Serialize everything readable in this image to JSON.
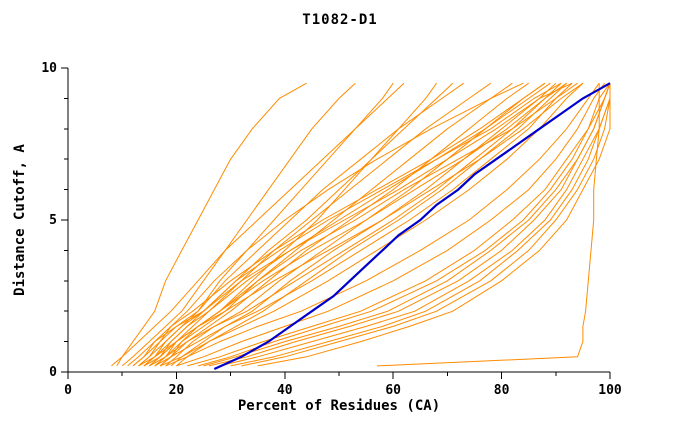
{
  "chart_data": {
    "type": "line",
    "title": "T1082-D1",
    "xlabel": "Percent of Residues (CA)",
    "ylabel": "Distance Cutoff, A",
    "xlim": [
      0,
      100
    ],
    "ylim": [
      0,
      10
    ],
    "x_major_ticks": [
      0,
      20,
      40,
      60,
      80,
      100
    ],
    "x_minor_step": 10,
    "y_major_ticks": [
      0,
      5,
      10
    ],
    "y_minor_step": 1,
    "grid": false,
    "legend": "none",
    "colors": {
      "models": "#FF8C00",
      "highlight": "#0000CD",
      "axis": "#000000"
    },
    "y_levels": [
      0.2,
      0.5,
      1,
      1.5,
      2,
      3,
      4,
      5,
      6,
      7,
      8,
      9,
      9.5
    ],
    "models": [
      [
        9,
        10,
        12,
        14,
        16,
        18,
        21,
        24,
        27,
        30,
        34,
        39,
        44
      ],
      [
        10,
        12,
        15,
        18,
        21,
        25,
        29,
        33,
        37,
        41,
        45,
        50,
        53
      ],
      [
        12,
        14,
        17,
        20,
        24,
        28,
        33,
        38,
        43,
        48,
        53,
        58,
        60
      ],
      [
        8,
        10,
        13,
        16,
        19,
        24,
        29,
        35,
        41,
        47,
        53,
        59,
        62
      ],
      [
        13,
        16,
        20,
        24,
        28,
        34,
        40,
        46,
        51,
        56,
        61,
        66,
        68
      ],
      [
        11,
        13,
        16,
        20,
        25,
        31,
        37,
        44,
        50,
        56,
        62,
        68,
        71
      ],
      [
        14,
        16,
        18,
        21,
        24,
        29,
        35,
        41,
        47,
        54,
        61,
        69,
        73
      ],
      [
        15,
        17,
        20,
        23,
        26,
        32,
        38,
        45,
        52,
        59,
        66,
        74,
        78
      ],
      [
        16,
        18,
        21,
        25,
        29,
        35,
        42,
        49,
        56,
        63,
        70,
        78,
        82
      ],
      [
        17,
        19,
        22,
        26,
        30,
        37,
        44,
        52,
        60,
        67,
        74,
        81,
        85
      ],
      [
        18,
        20,
        23,
        27,
        32,
        39,
        47,
        55,
        63,
        70,
        77,
        84,
        88
      ],
      [
        19,
        21,
        25,
        29,
        34,
        41,
        49,
        58,
        66,
        73,
        80,
        87,
        90
      ],
      [
        20,
        22,
        26,
        31,
        36,
        44,
        52,
        61,
        69,
        76,
        83,
        89,
        92
      ],
      [
        15,
        18,
        22,
        27,
        33,
        42,
        51,
        60,
        68,
        75,
        82,
        88,
        91
      ],
      [
        16,
        19,
        24,
        29,
        35,
        45,
        54,
        63,
        71,
        78,
        85,
        90,
        93
      ],
      [
        17,
        21,
        26,
        32,
        38,
        48,
        57,
        66,
        74,
        81,
        87,
        92,
        95
      ],
      [
        18,
        22,
        28,
        35,
        43,
        55,
        65,
        74,
        81,
        87,
        92,
        96,
        98
      ],
      [
        20,
        25,
        32,
        40,
        48,
        60,
        70,
        78,
        85,
        90,
        94,
        97,
        99
      ],
      [
        22,
        28,
        36,
        45,
        54,
        66,
        75,
        82,
        88,
        92,
        96,
        98,
        100
      ],
      [
        25,
        31,
        40,
        50,
        59,
        70,
        78,
        85,
        90,
        94,
        97,
        99,
        100
      ],
      [
        28,
        35,
        45,
        55,
        64,
        74,
        82,
        88,
        92,
        95,
        98,
        100,
        100
      ],
      [
        24,
        30,
        38,
        47,
        56,
        68,
        77,
        84,
        89,
        93,
        96,
        99,
        100
      ],
      [
        30,
        38,
        48,
        58,
        66,
        76,
        83,
        89,
        93,
        96,
        98,
        100,
        100
      ],
      [
        26,
        33,
        42,
        52,
        61,
        72,
        80,
        86,
        91,
        94,
        97,
        99,
        100
      ],
      [
        32,
        40,
        50,
        60,
        68,
        78,
        85,
        90,
        94,
        97,
        99,
        100,
        100
      ],
      [
        35,
        44,
        54,
        63,
        71,
        80,
        87,
        92,
        95,
        98,
        100,
        100,
        100
      ],
      [
        13,
        15,
        17,
        19,
        22,
        27,
        33,
        40,
        48,
        57,
        67,
        78,
        84
      ],
      [
        14,
        16,
        19,
        22,
        26,
        33,
        41,
        50,
        59,
        68,
        77,
        85,
        89
      ],
      [
        12,
        14,
        16,
        19,
        23,
        30,
        38,
        47,
        57,
        67,
        76,
        84,
        88
      ],
      [
        15,
        17,
        19,
        22,
        25,
        31,
        39,
        48,
        58,
        68,
        78,
        86,
        91
      ],
      [
        16,
        18,
        20,
        24,
        28,
        36,
        45,
        55,
        64,
        73,
        81,
        88,
        92
      ],
      [
        13,
        15,
        18,
        21,
        25,
        32,
        41,
        51,
        61,
        70,
        79,
        87,
        93
      ],
      [
        17,
        19,
        21,
        24,
        28,
        35,
        43,
        53,
        62,
        72,
        82,
        90,
        94
      ],
      [
        14,
        17,
        20,
        24,
        29,
        38,
        48,
        58,
        67,
        76,
        84,
        91,
        95
      ],
      [
        57,
        94,
        95,
        95,
        95.5,
        96,
        96.5,
        97,
        97,
        97.5,
        98,
        98,
        98
      ]
    ],
    "highlight_series": {
      "x": [
        27,
        32,
        37,
        41,
        45,
        49,
        52,
        55,
        58,
        61,
        65,
        68,
        72,
        75,
        79,
        83,
        87,
        91,
        95,
        98,
        100
      ],
      "y": [
        0.1,
        0.5,
        1,
        1.5,
        2,
        2.5,
        3,
        3.5,
        4,
        4.5,
        5,
        5.5,
        6,
        6.5,
        7,
        7.5,
        8,
        8.5,
        9,
        9.3,
        9.5
      ]
    }
  }
}
